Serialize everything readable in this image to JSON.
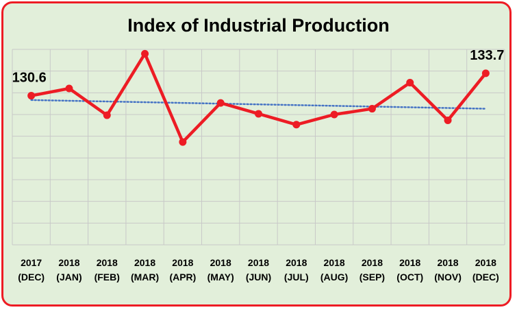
{
  "chart_data": {
    "type": "line",
    "title": "Index of Industrial Production",
    "categories": [
      [
        "2017",
        "(DEC)"
      ],
      [
        "2018",
        "(JAN)"
      ],
      [
        "2018",
        "(FEB)"
      ],
      [
        "2018",
        "(MAR)"
      ],
      [
        "2018",
        "(APR)"
      ],
      [
        "2018",
        "(MAY)"
      ],
      [
        "2018",
        "(JUN)"
      ],
      [
        "2018",
        "(JUL)"
      ],
      [
        "2018",
        "(AUG)"
      ],
      [
        "2018",
        "(SEP)"
      ],
      [
        "2018",
        "(OCT)"
      ],
      [
        "2018",
        "(NOV)"
      ],
      [
        "2018",
        "(DEC)"
      ]
    ],
    "series": [
      {
        "values": [
          130.6,
          131.6,
          127.9,
          136.4,
          124.2,
          129.6,
          128.1,
          126.6,
          128.0,
          128.8,
          132.4,
          127.2,
          133.7
        ],
        "color": "#ed1c24",
        "labels": [
          {
            "index": 0,
            "text": "130.6"
          },
          {
            "index": 12,
            "text": "133.7"
          }
        ]
      }
    ],
    "trendline": {
      "start": 130.0,
      "end": 128.8,
      "color": "#4472c4",
      "style": "dotted"
    },
    "ylim": [
      110,
      137
    ],
    "grid": true,
    "ytick_labels": false,
    "legend": "none"
  }
}
